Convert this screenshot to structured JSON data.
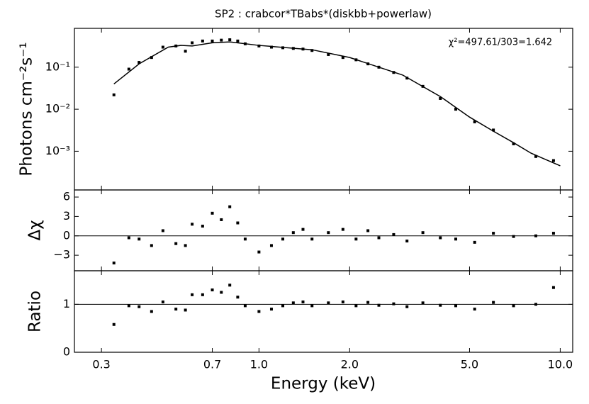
{
  "chart_data": [
    {
      "type": "scatter",
      "title": "SP2 : crabcor*TBabs*(diskbb+powerlaw)",
      "ylabel": "Photons cm⁻²s⁻¹",
      "annotation": "χ²=497.61/303=1.642",
      "yscale": "log",
      "ylim": [
        0.00012,
        0.84
      ],
      "yticks": [
        {
          "value": 0.001,
          "label": "10⁻³"
        },
        {
          "value": 0.01,
          "label": "10⁻²"
        },
        {
          "value": 0.1,
          "label": "10⁻¹"
        }
      ],
      "series": [
        {
          "style": "points",
          "color": "#000000",
          "x": [
            0.33,
            0.37,
            0.4,
            0.44,
            0.48,
            0.53,
            0.57,
            0.6,
            0.65,
            0.7,
            0.75,
            0.8,
            0.85,
            0.9,
            1.0,
            1.1,
            1.2,
            1.3,
            1.4,
            1.5,
            1.7,
            1.9,
            2.1,
            2.3,
            2.5,
            2.8,
            3.1,
            3.5,
            4.0,
            4.5,
            5.2,
            6.0,
            7.0,
            8.3,
            9.5
          ],
          "values": [
            0.022,
            0.09,
            0.13,
            0.17,
            0.3,
            0.32,
            0.24,
            0.38,
            0.42,
            0.42,
            0.44,
            0.45,
            0.42,
            0.36,
            0.32,
            0.3,
            0.29,
            0.28,
            0.27,
            0.25,
            0.2,
            0.17,
            0.15,
            0.12,
            0.1,
            0.075,
            0.055,
            0.035,
            0.018,
            0.01,
            0.005,
            0.0032,
            0.0015,
            0.00075,
            0.0006
          ]
        },
        {
          "style": "line",
          "color": "#000000",
          "x": [
            0.33,
            0.4,
            0.5,
            0.55,
            0.6,
            0.7,
            0.8,
            1.0,
            1.5,
            2.0,
            3.0,
            4.0,
            5.0,
            6.0,
            7.0,
            8.0,
            10.0
          ],
          "values": [
            0.04,
            0.12,
            0.3,
            0.33,
            0.32,
            0.38,
            0.4,
            0.33,
            0.26,
            0.17,
            0.065,
            0.02,
            0.0065,
            0.003,
            0.0016,
            0.0009,
            0.00045
          ]
        }
      ]
    },
    {
      "type": "scatter",
      "ylabel": "Δχ",
      "ylim": [
        -5.4,
        7.1
      ],
      "yticks": [
        {
          "value": -3,
          "label": "−3"
        },
        0,
        3,
        6
      ],
      "hline": 0,
      "series": [
        {
          "style": "points",
          "color": "#000000",
          "x": [
            0.33,
            0.37,
            0.4,
            0.44,
            0.48,
            0.53,
            0.57,
            0.6,
            0.65,
            0.7,
            0.75,
            0.8,
            0.85,
            0.9,
            1.0,
            1.1,
            1.2,
            1.3,
            1.4,
            1.5,
            1.7,
            1.9,
            2.1,
            2.3,
            2.5,
            2.8,
            3.1,
            3.5,
            4.0,
            4.5,
            5.2,
            6.0,
            7.0,
            8.3,
            9.5
          ],
          "values": [
            -4.2,
            -0.3,
            -0.5,
            -1.5,
            0.8,
            -1.2,
            -1.5,
            1.8,
            1.5,
            3.5,
            2.5,
            4.5,
            2.0,
            -0.5,
            -2.5,
            -1.5,
            -0.5,
            0.5,
            1,
            -0.5,
            0.5,
            1.0,
            -0.5,
            0.8,
            -0.3,
            0.2,
            -0.8,
            0.5,
            -0.3,
            -0.5,
            -1.0,
            0.4,
            -0.1,
            0.0,
            0.4
          ]
        }
      ]
    },
    {
      "type": "scatter",
      "ylabel": "Ratio",
      "xlabel": "Energy (keV)",
      "ylim": [
        0,
        1.7
      ],
      "yticks": [
        0,
        1
      ],
      "hline": 1,
      "xscale": "log",
      "xlim": [
        0.244,
        11
      ],
      "xticks": [
        {
          "value": 0.3,
          "label": "0.3"
        },
        {
          "value": 0.7,
          "label": "0.7"
        },
        {
          "value": 1,
          "label": "1.0"
        },
        {
          "value": 2,
          "label": "2.0"
        },
        {
          "value": 5,
          "label": "5.0"
        },
        {
          "value": 10,
          "label": "10.0"
        }
      ],
      "series": [
        {
          "style": "points",
          "color": "#000000",
          "x": [
            0.33,
            0.37,
            0.4,
            0.44,
            0.48,
            0.53,
            0.57,
            0.6,
            0.65,
            0.7,
            0.75,
            0.8,
            0.85,
            0.9,
            1.0,
            1.1,
            1.2,
            1.3,
            1.4,
            1.5,
            1.7,
            1.9,
            2.1,
            2.3,
            2.5,
            2.8,
            3.1,
            3.5,
            4.0,
            4.5,
            5.2,
            6.0,
            7.0,
            8.3,
            9.5
          ],
          "values": [
            0.58,
            0.97,
            0.95,
            0.85,
            1.05,
            0.9,
            0.88,
            1.2,
            1.2,
            1.3,
            1.25,
            1.4,
            1.15,
            0.97,
            0.85,
            0.9,
            0.97,
            1.03,
            1.05,
            0.97,
            1.03,
            1.05,
            0.97,
            1.04,
            0.98,
            1.01,
            0.95,
            1.03,
            0.98,
            0.97,
            0.9,
            1.04,
            0.97,
            1.0,
            1.35
          ]
        }
      ]
    }
  ]
}
